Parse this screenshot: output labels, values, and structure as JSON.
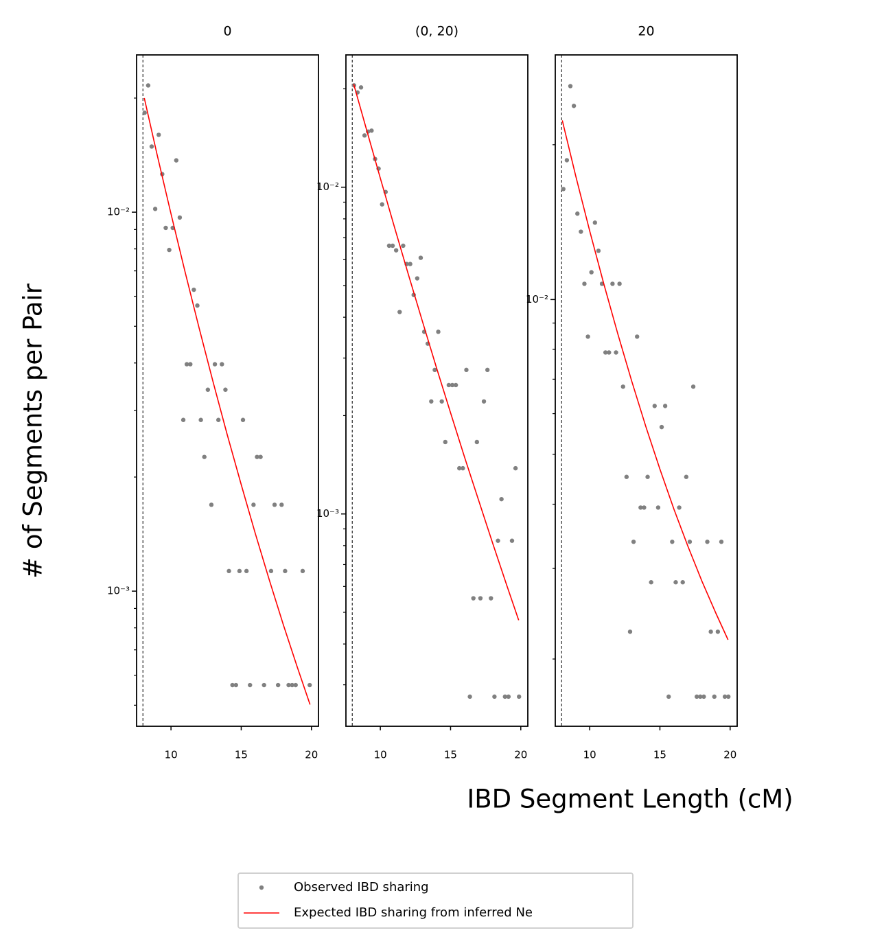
{
  "figure": {
    "xlabel": "IBD Segment Length (cM)",
    "ylabel": "# of Segments per Pair",
    "legend": "lower center"
  },
  "chart_data": [
    {
      "type": "scatter",
      "title": "0",
      "xlim": [
        7.55,
        20.5
      ],
      "xticks": [
        10,
        15,
        20
      ],
      "ylim": [
        0.00044,
        0.026
      ],
      "yscale": "log",
      "yticks": [
        {
          "value": 0.001,
          "label": "10⁻³"
        },
        {
          "value": 0.01,
          "label": "10⁻²"
        }
      ],
      "yminorticks": [
        0.0005,
        0.0006,
        0.0007,
        0.0008,
        0.0009,
        0.002,
        0.003,
        0.004,
        0.005,
        0.006,
        0.007,
        0.008,
        0.009,
        0.02
      ],
      "vline": 8,
      "series": [
        {
          "name": "Observed IBD sharing",
          "type": "scatter",
          "color": "#808080",
          "x": [
            8.125,
            8.375,
            8.625,
            8.875,
            9.125,
            9.375,
            9.625,
            9.875,
            10.125,
            10.375,
            10.625,
            10.875,
            11.125,
            11.375,
            11.625,
            11.875,
            12.125,
            12.375,
            12.625,
            12.875,
            13.125,
            13.375,
            13.625,
            13.875,
            14.125,
            14.375,
            14.625,
            14.875,
            15.125,
            15.375,
            15.625,
            15.875,
            16.125,
            16.375,
            16.625,
            17.125,
            17.375,
            17.625,
            17.875,
            18.125,
            18.375,
            18.625,
            18.875,
            19.375,
            19.875
          ],
          "values": [
            0.0183,
            0.0216,
            0.0149,
            0.0102,
            0.016,
            0.0126,
            0.00909,
            0.00795,
            0.00909,
            0.0137,
            0.00968,
            0.00283,
            0.00397,
            0.00397,
            0.00624,
            0.00567,
            0.00283,
            0.00226,
            0.0034,
            0.00169,
            0.00397,
            0.00283,
            0.00397,
            0.0034,
            0.00113,
            0.000565,
            0.000565,
            0.00113,
            0.00283,
            0.00113,
            0.000565,
            0.00169,
            0.00226,
            0.00226,
            0.000565,
            0.00113,
            0.00169,
            0.000565,
            0.00169,
            0.00113,
            0.000565,
            0.000565,
            0.000565,
            0.00113,
            0.000565
          ]
        },
        {
          "name": "Expected IBD sharing from inferred Ne",
          "type": "line",
          "color": "#ff0000",
          "x": [
            8.1,
            9,
            10,
            11,
            12,
            13,
            14,
            15,
            16,
            17,
            18,
            19,
            19.9
          ],
          "values": [
            0.02,
            0.01424,
            0.0099,
            0.00696,
            0.00495,
            0.00356,
            0.00259,
            0.00191,
            0.00142,
            0.00107,
            0.000815,
            0.000629,
            0.000502
          ]
        }
      ]
    },
    {
      "type": "scatter",
      "title": "(0, 20)",
      "xlim": [
        7.55,
        20.5
      ],
      "xticks": [
        10,
        15,
        20
      ],
      "ylim": [
        0.000224,
        0.0254
      ],
      "yscale": "log",
      "yticks": [
        {
          "value": 0.001,
          "label": "10⁻³"
        },
        {
          "value": 0.01,
          "label": "10⁻²"
        }
      ],
      "yminorticks": [
        0.0003,
        0.0004,
        0.0005,
        0.0006,
        0.0007,
        0.0008,
        0.0009,
        0.002,
        0.003,
        0.004,
        0.005,
        0.006,
        0.007,
        0.008,
        0.009,
        0.02
      ],
      "vline": 8,
      "series": [
        {
          "name": "Observed IBD sharing",
          "type": "scatter",
          "color": "#808080",
          "x": [
            8.125,
            8.375,
            8.625,
            8.875,
            9.125,
            9.375,
            9.625,
            9.875,
            10.125,
            10.375,
            10.625,
            10.875,
            11.125,
            11.375,
            11.625,
            11.875,
            12.125,
            12.375,
            12.625,
            12.875,
            13.125,
            13.375,
            13.625,
            13.875,
            14.125,
            14.375,
            14.625,
            14.875,
            15.125,
            15.375,
            15.625,
            15.875,
            16.125,
            16.375,
            16.625,
            16.875,
            17.125,
            17.375,
            17.625,
            17.875,
            18.125,
            18.375,
            18.625,
            18.875,
            19.125,
            19.375,
            19.625,
            19.875
          ],
          "values": [
            0.0205,
            0.0195,
            0.0202,
            0.0144,
            0.0148,
            0.0149,
            0.0122,
            0.0114,
            0.00886,
            0.00967,
            0.00662,
            0.00662,
            0.00641,
            0.00415,
            0.00662,
            0.00582,
            0.00582,
            0.00468,
            0.00526,
            0.00608,
            0.00361,
            0.00332,
            0.00221,
            0.00276,
            0.00361,
            0.00221,
            0.00166,
            0.00248,
            0.00248,
            0.00248,
            0.00138,
            0.00138,
            0.00276,
            0.000276,
            0.000552,
            0.00166,
            0.000552,
            0.00221,
            0.00276,
            0.000552,
            0.000276,
            0.000828,
            0.00111,
            0.000276,
            0.000276,
            0.000828,
            0.00138,
            0.000276
          ]
        },
        {
          "name": "Expected IBD sharing from inferred Ne",
          "type": "line",
          "color": "#ff0000",
          "x": [
            8.1,
            9,
            10,
            11,
            12,
            13,
            14,
            15,
            16,
            17,
            18,
            19,
            19.85
          ],
          "values": [
            0.0207,
            0.01509,
            0.01065,
            0.00756,
            0.0054,
            0.00388,
            0.0028,
            0.00204,
            0.00149,
            0.0011,
            0.000813,
            0.000605,
            0.000473
          ]
        }
      ]
    },
    {
      "type": "scatter",
      "title": "20",
      "xlim": [
        7.55,
        20.5
      ],
      "xticks": [
        10,
        15,
        20
      ],
      "ylim": [
        0.00148,
        0.0299
      ],
      "yscale": "log",
      "yticks": [
        {
          "value": 0.01,
          "label": "10⁻²"
        }
      ],
      "yminorticks": [
        0.002,
        0.003,
        0.004,
        0.005,
        0.006,
        0.007,
        0.008,
        0.009,
        0.02
      ],
      "vline": 8,
      "series": [
        {
          "name": "Observed IBD sharing",
          "type": "scatter",
          "color": "#808080",
          "x": [
            8.125,
            8.375,
            8.625,
            8.875,
            9.125,
            9.375,
            9.625,
            9.875,
            10.125,
            10.375,
            10.625,
            10.875,
            11.125,
            11.375,
            11.625,
            11.875,
            12.125,
            12.375,
            12.625,
            12.875,
            13.125,
            13.375,
            13.625,
            13.875,
            14.125,
            14.375,
            14.625,
            14.875,
            15.125,
            15.375,
            15.625,
            15.875,
            16.125,
            16.375,
            16.625,
            16.875,
            17.125,
            17.375,
            17.625,
            17.875,
            18.125,
            18.375,
            18.625,
            18.875,
            19.125,
            19.375,
            19.625,
            19.875
          ],
          "values": [
            0.0164,
            0.01866,
            0.026,
            0.0238,
            0.01469,
            0.01355,
            0.01073,
            0.00847,
            0.0113,
            0.01411,
            0.01244,
            0.01073,
            0.00789,
            0.00789,
            0.01073,
            0.00789,
            0.01073,
            0.00677,
            0.00452,
            0.00226,
            0.00338,
            0.00847,
            0.00394,
            0.00394,
            0.00452,
            0.00282,
            0.00621,
            0.00394,
            0.00565,
            0.00621,
            0.00169,
            0.00338,
            0.00282,
            0.00394,
            0.00282,
            0.00452,
            0.00338,
            0.00677,
            0.00169,
            0.00169,
            0.00169,
            0.00338,
            0.00226,
            0.00169,
            0.00226,
            0.00338,
            0.00169,
            0.00169
          ]
        },
        {
          "name": "Expected IBD sharing from inferred Ne",
          "type": "line",
          "color": "#ff0000",
          "x": [
            8.05,
            9,
            10,
            11,
            12,
            13,
            14,
            15,
            16,
            17,
            18,
            19,
            19.85
          ],
          "values": [
            0.0223,
            0.01742,
            0.0136,
            0.01074,
            0.00858,
            0.00693,
            0.00566,
            0.00468,
            0.00391,
            0.00331,
            0.00283,
            0.00245,
            0.00218
          ]
        }
      ]
    }
  ]
}
